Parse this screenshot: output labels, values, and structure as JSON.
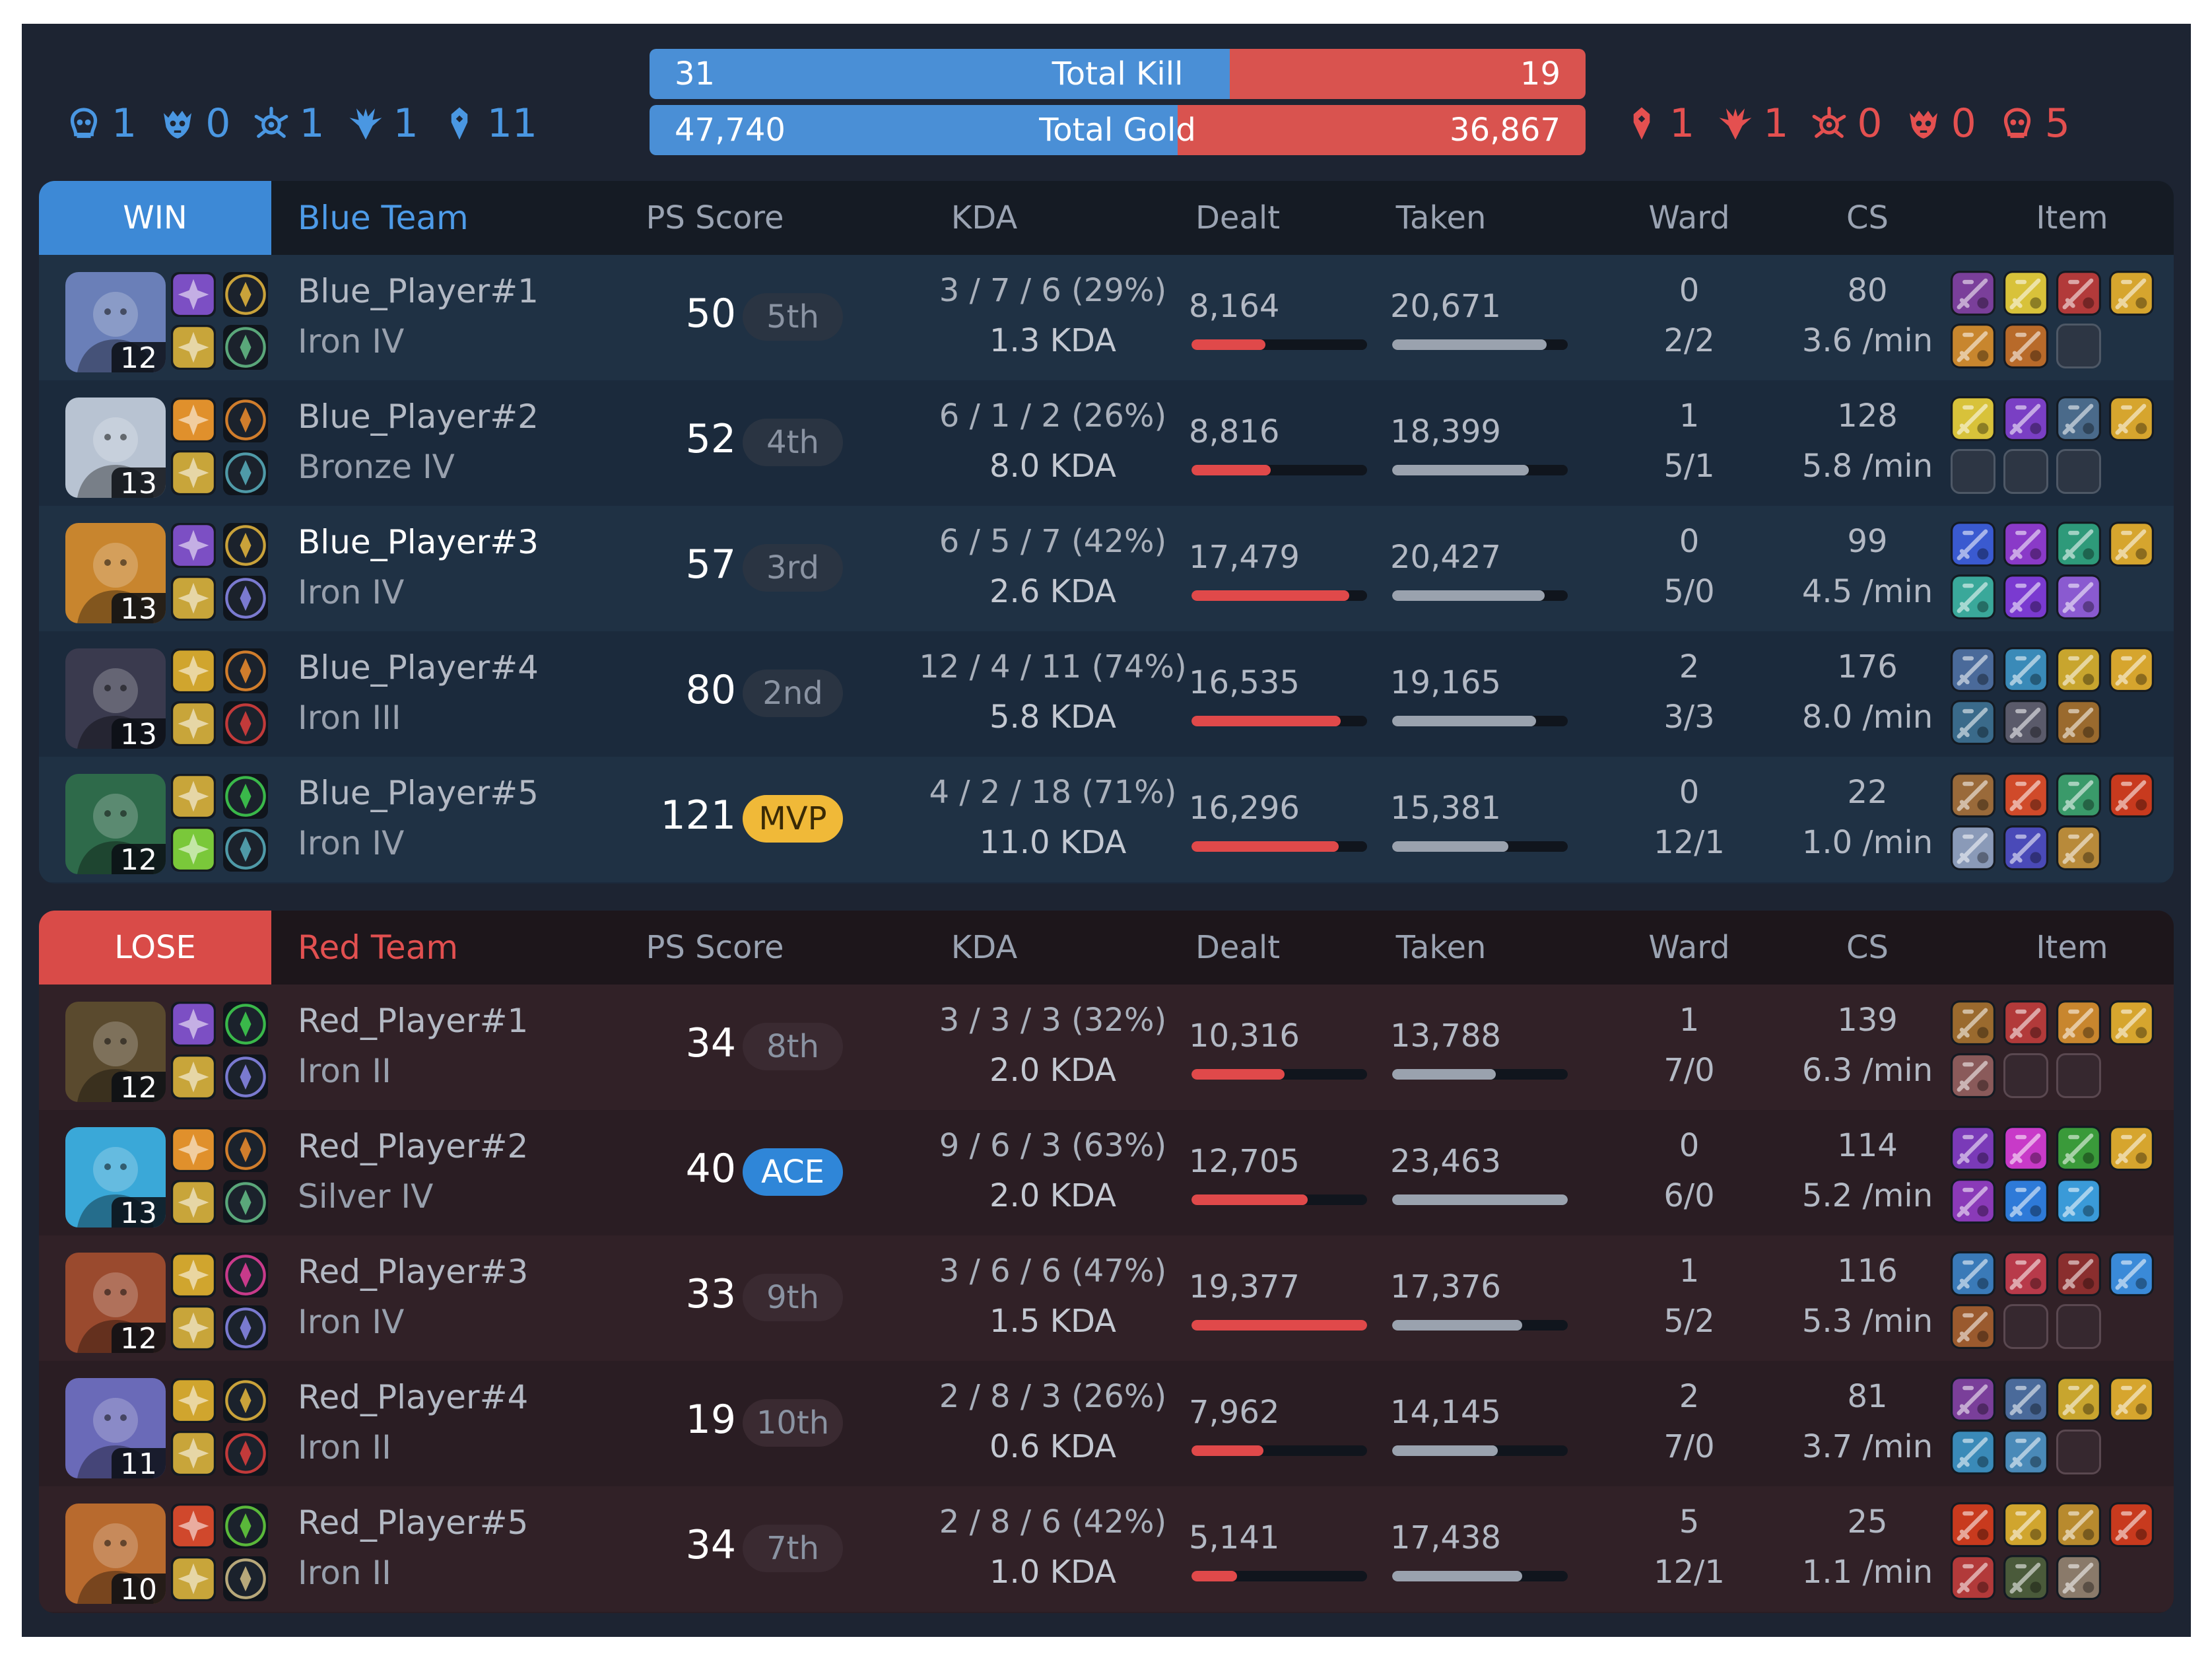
{
  "header": {
    "blue_objectives": [
      {
        "icon": "baron-icon",
        "value": "1"
      },
      {
        "icon": "herald-icon",
        "value": "0"
      },
      {
        "icon": "elder-icon",
        "value": "1"
      },
      {
        "icon": "dragon-icon",
        "value": "1"
      },
      {
        "icon": "tower-icon",
        "value": "11"
      }
    ],
    "red_objectives": [
      {
        "icon": "tower-icon",
        "value": "1"
      },
      {
        "icon": "dragon-icon",
        "value": "1"
      },
      {
        "icon": "elder-icon",
        "value": "0"
      },
      {
        "icon": "herald-icon",
        "value": "0"
      },
      {
        "icon": "baron-icon",
        "value": "5"
      }
    ],
    "total_kill": {
      "label": "Total Kill",
      "blue": "31",
      "red": "19",
      "blue_share": 0.62
    },
    "total_gold": {
      "label": "Total Gold",
      "blue": "47,740",
      "red": "36,867",
      "blue_share": 0.564
    },
    "colors": {
      "blue": "#4a8fd6",
      "red": "#d9534f"
    }
  },
  "columns": {
    "ps_score": "PS Score",
    "kda": "KDA",
    "dealt": "Dealt",
    "taken": "Taken",
    "ward": "Ward",
    "cs": "CS",
    "item": "Item"
  },
  "teams": [
    {
      "result": "WIN",
      "name": "Blue Team",
      "players": [
        {
          "name": "Blue_Player#1",
          "rank": "Iron IV",
          "level": "12",
          "champ_color": "#6a7fb8",
          "spells": [
            "#7c4fc4",
            "#c8a53a"
          ],
          "runes": [
            "#c9a23a",
            "#5aa77a"
          ],
          "score": "50",
          "badge": "5th",
          "kda_line": "3 / 7 / 6 (29%)",
          "kda_ratio": "1.3 KDA",
          "dealt": "8,164",
          "dealt_ratio": 0.42,
          "taken": "20,671",
          "taken_ratio": 0.88,
          "ward": "0",
          "ward_detail": "2/2",
          "cs": "80",
          "cs_per_min": "3.6 /min",
          "items": [
            "#7a3f9a",
            "#d8c23a",
            "#b23a3a",
            "#d6a52e",
            "#c8862e",
            "#b86a2a",
            "empty"
          ],
          "highlight": false
        },
        {
          "name": "Blue_Player#2",
          "rank": "Bronze IV",
          "level": "13",
          "champ_color": "#b8c3d2",
          "spells": [
            "#e0902c",
            "#c8a53a"
          ],
          "runes": [
            "#d07d2c",
            "#4f9aa8"
          ],
          "score": "52",
          "badge": "4th",
          "kda_line": "6 / 1 / 2 (26%)",
          "kda_ratio": "8.0 KDA",
          "dealt": "8,816",
          "dealt_ratio": 0.45,
          "taken": "18,399",
          "taken_ratio": 0.78,
          "ward": "1",
          "ward_detail": "5/1",
          "cs": "128",
          "cs_per_min": "5.8 /min",
          "items": [
            "#d8c23a",
            "#7a3fc4",
            "#4a6a8a",
            "#d6a52e",
            "empty",
            "empty",
            "empty"
          ],
          "highlight": false
        },
        {
          "name": "Blue_Player#3",
          "rank": "Iron IV",
          "level": "13",
          "champ_color": "#c8852e",
          "spells": [
            "#7c4fc4",
            "#c8a53a"
          ],
          "runes": [
            "#c9a23a",
            "#7a7ad0"
          ],
          "score": "57",
          "badge": "3rd",
          "kda_line": "6 / 5 / 7 (42%)",
          "kda_ratio": "2.6 KDA",
          "dealt": "17,479",
          "dealt_ratio": 0.9,
          "taken": "20,427",
          "taken_ratio": 0.87,
          "ward": "0",
          "ward_detail": "5/0",
          "cs": "99",
          "cs_per_min": "4.5 /min",
          "items": [
            "#3a5ad0",
            "#8a3ac8",
            "#2e9a7a",
            "#d6a52e",
            "#3aa89a",
            "#7a3ad0",
            "#8a5ad0"
          ],
          "highlight": true
        },
        {
          "name": "Blue_Player#4",
          "rank": "Iron III",
          "level": "13",
          "champ_color": "#3a3a4e",
          "spells": [
            "#d0a52e",
            "#c8a53a"
          ],
          "runes": [
            "#d07d2c",
            "#c23a3a"
          ],
          "score": "80",
          "badge": "2nd",
          "kda_line": "12 / 4 / 11 (74%)",
          "kda_ratio": "5.8 KDA",
          "dealt": "16,535",
          "dealt_ratio": 0.85,
          "taken": "19,165",
          "taken_ratio": 0.82,
          "ward": "2",
          "ward_detail": "3/3",
          "cs": "176",
          "cs_per_min": "8.0 /min",
          "items": [
            "#4a6a9a",
            "#3a8ab8",
            "#c8a52e",
            "#d6a52e",
            "#3a6a8a",
            "#5a5a6a",
            "#9a6a2e"
          ],
          "highlight": false
        },
        {
          "name": "Blue_Player#5",
          "rank": "Iron IV",
          "level": "12",
          "champ_color": "#2e6a4a",
          "spells": [
            "#c8a53a",
            "#7ac83a"
          ],
          "runes": [
            "#3ab84a",
            "#4f9aa8"
          ],
          "score": "121",
          "badge": "MVP",
          "kda_line": "4 / 2 / 18 (71%)",
          "kda_ratio": "11.0 KDA",
          "dealt": "16,296",
          "dealt_ratio": 0.84,
          "taken": "15,381",
          "taken_ratio": 0.66,
          "ward": "0",
          "ward_detail": "12/1",
          "cs": "22",
          "cs_per_min": "1.0 /min",
          "items": [
            "#9a6a3a",
            "#d04a2a",
            "#3a9a6a",
            "#c83a1e",
            "#8a9ab8",
            "#4a4ab8",
            "#b88a3a"
          ],
          "highlight": false
        }
      ]
    },
    {
      "result": "LOSE",
      "name": "Red Team",
      "players": [
        {
          "name": "Red_Player#1",
          "rank": "Iron II",
          "level": "12",
          "champ_color": "#5a4a2e",
          "spells": [
            "#7c4fc4",
            "#c8a53a"
          ],
          "runes": [
            "#3ab84a",
            "#7a7ad0"
          ],
          "score": "34",
          "badge": "8th",
          "kda_line": "3 / 3 / 3 (32%)",
          "kda_ratio": "2.0 KDA",
          "dealt": "10,316",
          "dealt_ratio": 0.53,
          "taken": "13,788",
          "taken_ratio": 0.59,
          "ward": "1",
          "ward_detail": "7/0",
          "cs": "139",
          "cs_per_min": "6.3 /min",
          "items": [
            "#9a6a2e",
            "#b23a3a",
            "#c8862e",
            "#d6a52e",
            "#8a5a5a",
            "empty",
            "empty"
          ],
          "highlight": false
        },
        {
          "name": "Red_Player#2",
          "rank": "Silver IV",
          "level": "13",
          "champ_color": "#3aa8d8",
          "spells": [
            "#e0902c",
            "#c8a53a"
          ],
          "runes": [
            "#d07d2c",
            "#5aa77a"
          ],
          "score": "40",
          "badge": "ACE",
          "kda_line": "9 / 6 / 3 (63%)",
          "kda_ratio": "2.0 KDA",
          "dealt": "12,705",
          "dealt_ratio": 0.66,
          "taken": "23,463",
          "taken_ratio": 1.0,
          "ward": "0",
          "ward_detail": "6/0",
          "cs": "114",
          "cs_per_min": "5.2 /min",
          "items": [
            "#7a3ab8",
            "#c83ac8",
            "#3a9a3a",
            "#d6a52e",
            "#8a3ab8",
            "#2e7ad8",
            "#3a9ad8"
          ],
          "highlight": false
        },
        {
          "name": "Red_Player#3",
          "rank": "Iron IV",
          "level": "12",
          "champ_color": "#9a4a2e",
          "spells": [
            "#d0a52e",
            "#c8a53a"
          ],
          "runes": [
            "#c83a8a",
            "#7a7ad0"
          ],
          "score": "33",
          "badge": "9th",
          "kda_line": "3 / 6 / 6 (47%)",
          "kda_ratio": "1.5 KDA",
          "dealt": "19,377",
          "dealt_ratio": 1.0,
          "taken": "17,376",
          "taken_ratio": 0.74,
          "ward": "1",
          "ward_detail": "5/2",
          "cs": "116",
          "cs_per_min": "5.3 /min",
          "items": [
            "#3a7ab8",
            "#b83a4a",
            "#8a2e2e",
            "#3a8ad8",
            "#9a5a2e",
            "empty",
            "empty"
          ],
          "highlight": false
        },
        {
          "name": "Red_Player#4",
          "rank": "Iron II",
          "level": "11",
          "champ_color": "#6a6ab8",
          "spells": [
            "#d0a52e",
            "#c8a53a"
          ],
          "runes": [
            "#c9a23a",
            "#c23a3a"
          ],
          "score": "19",
          "badge": "10th",
          "kda_line": "2 / 8 / 3 (26%)",
          "kda_ratio": "0.6 KDA",
          "dealt": "7,962",
          "dealt_ratio": 0.41,
          "taken": "14,145",
          "taken_ratio": 0.6,
          "ward": "2",
          "ward_detail": "7/0",
          "cs": "81",
          "cs_per_min": "3.7 /min",
          "items": [
            "#7a3f9a",
            "#4a6a9a",
            "#c8a52e",
            "#d6a52e",
            "#3a8ab8",
            "#4a8ab8",
            "empty"
          ],
          "highlight": false
        },
        {
          "name": "Red_Player#5",
          "rank": "Iron II",
          "level": "10",
          "champ_color": "#b86a2e",
          "spells": [
            "#d0482c",
            "#c8a53a"
          ],
          "runes": [
            "#5ab83a",
            "#b8a87a"
          ],
          "score": "34",
          "badge": "7th",
          "kda_line": "2 / 8 / 6 (42%)",
          "kda_ratio": "1.0 KDA",
          "dealt": "5,141",
          "dealt_ratio": 0.26,
          "taken": "17,438",
          "taken_ratio": 0.74,
          "ward": "5",
          "ward_detail": "12/1",
          "cs": "25",
          "cs_per_min": "1.1 /min",
          "items": [
            "#c83a1e",
            "#d0a52e",
            "#b88a2e",
            "#c83a1e",
            "#b23a3a",
            "#4a5a3a",
            "#8a7a6a"
          ],
          "highlight": false
        }
      ]
    }
  ]
}
